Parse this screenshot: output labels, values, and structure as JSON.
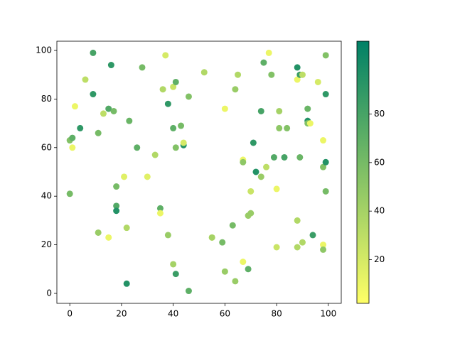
{
  "chart_data": {
    "type": "scatter",
    "x": [
      0,
      0,
      1,
      1,
      2,
      4,
      6,
      9,
      9,
      11,
      11,
      13,
      15,
      15,
      16,
      17,
      18,
      18,
      18,
      21,
      22,
      22,
      23,
      26,
      28,
      30,
      33,
      35,
      35,
      36,
      37,
      38,
      38,
      40,
      40,
      40,
      41,
      41,
      41,
      43,
      44,
      44,
      46,
      46,
      52,
      55,
      55,
      59,
      60,
      60,
      63,
      64,
      64,
      65,
      67,
      67,
      67,
      69,
      69,
      70,
      70,
      71,
      72,
      74,
      74,
      75,
      76,
      77,
      78,
      79,
      80,
      80,
      81,
      81,
      83,
      84,
      88,
      88,
      88,
      88,
      89,
      90,
      89,
      90,
      92,
      92,
      92,
      93,
      94,
      96,
      98,
      98,
      98,
      98,
      99,
      99,
      99,
      99
    ],
    "values": [
      41,
      63,
      64,
      60,
      77,
      68,
      88,
      99,
      82,
      66,
      25,
      74,
      76,
      23,
      94,
      75,
      44,
      36,
      34,
      48,
      27,
      4,
      71,
      60,
      93,
      48,
      57,
      35,
      33,
      84,
      98,
      78,
      24,
      85,
      68,
      12,
      87,
      60,
      8,
      69,
      61,
      62,
      81,
      1,
      91,
      23,
      23,
      21,
      76,
      9,
      28,
      84,
      5,
      90,
      55,
      54,
      13,
      10,
      32,
      33,
      42,
      62,
      50,
      75,
      48,
      95,
      52,
      99,
      90,
      56,
      43,
      19,
      75,
      68,
      56,
      68,
      93,
      88,
      30,
      19,
      90,
      90,
      56,
      21,
      76,
      71,
      70,
      70,
      24,
      87,
      63,
      52,
      20,
      18,
      98,
      82,
      54,
      42
    ],
    "color_values": [
      60,
      55,
      70,
      10,
      10,
      90,
      30,
      80,
      90,
      60,
      45,
      30,
      75,
      10,
      90,
      60,
      60,
      75,
      95,
      15,
      35,
      95,
      65,
      70,
      60,
      15,
      35,
      70,
      10,
      35,
      20,
      90,
      45,
      25,
      70,
      40,
      70,
      55,
      85,
      60,
      95,
      20,
      55,
      70,
      35,
      10,
      40,
      60,
      10,
      45,
      60,
      45,
      45,
      35,
      10,
      50,
      10,
      70,
      45,
      45,
      25,
      90,
      95,
      80,
      45,
      70,
      30,
      10,
      55,
      75,
      10,
      25,
      40,
      50,
      80,
      55,
      95,
      10,
      35,
      35,
      85,
      30,
      65,
      35,
      65,
      95,
      55,
      10,
      85,
      20,
      10,
      55,
      10,
      50,
      55,
      90,
      95,
      60
    ],
    "colormap": [
      "#ffff66",
      "#008066"
    ],
    "clim": [
      2,
      110
    ],
    "cticks": [
      20,
      40,
      60,
      80
    ],
    "xlim": [
      -5,
      105
    ],
    "ylim": [
      -4.1,
      103.8
    ],
    "xticks": [
      0,
      20,
      40,
      60,
      80,
      100
    ],
    "yticks": [
      0,
      20,
      40,
      60,
      80,
      100
    ]
  }
}
